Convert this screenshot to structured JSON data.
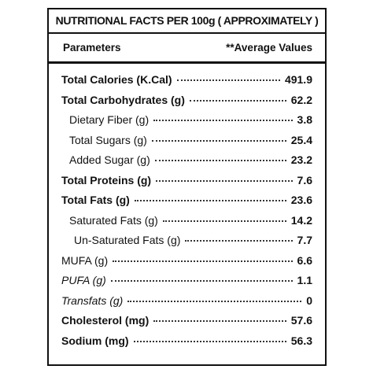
{
  "table": {
    "title": "NUTRITIONAL FACTS PER 100g ( APPROXIMATELY )",
    "header": [
      "Parameters",
      "**Average Values"
    ],
    "rows": [
      [
        "Total Calories (K.Cal)",
        "491.9"
      ],
      [
        "Total Carbohydrates (g)",
        "62.2"
      ],
      [
        "Dietary Fiber (g)",
        "3.8"
      ],
      [
        "Total Sugars (g)",
        "25.4"
      ],
      [
        "Added Sugar (g)",
        "23.2"
      ],
      [
        "Total Proteins (g)",
        "7.6"
      ],
      [
        "Total Fats (g)",
        "23.6"
      ],
      [
        "Saturated Fats (g)",
        "14.2"
      ],
      [
        "Un-Saturated Fats (g)",
        "7.7"
      ],
      [
        "MUFA (g)",
        "6.6"
      ],
      [
        "PUFA (g)",
        "1.1"
      ],
      [
        "Transfats (g)",
        "0"
      ],
      [
        "Cholesterol (mg)",
        "57.6"
      ],
      [
        "Sodium (mg)",
        "56.3"
      ]
    ]
  }
}
